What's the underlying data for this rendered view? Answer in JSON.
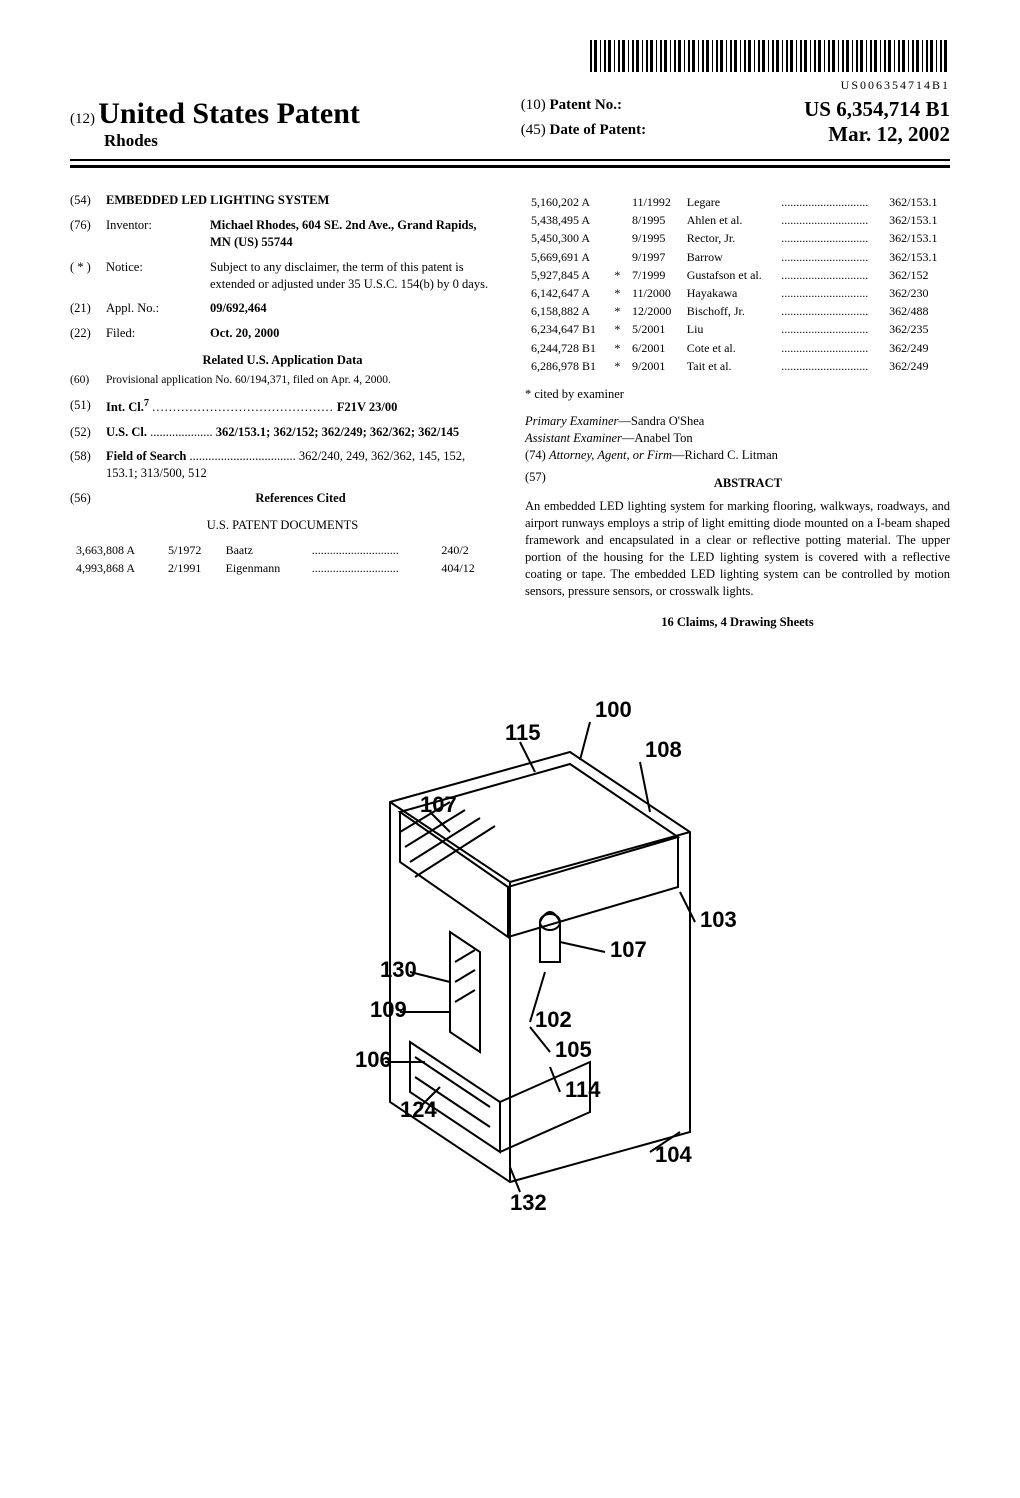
{
  "barcode_number": "US006354714B1",
  "header": {
    "doc_type_prefix": "(12)",
    "doc_type": "United States Patent",
    "inventor_surname": "Rhodes",
    "patent_no_prefix": "(10)",
    "patent_no_label": "Patent No.:",
    "patent_no": "US 6,354,714 B1",
    "date_prefix": "(45)",
    "date_label": "Date of Patent:",
    "date": "Mar. 12, 2002"
  },
  "left_col": {
    "title_num": "(54)",
    "title": "EMBEDDED LED LIGHTING SYSTEM",
    "inventor_num": "(76)",
    "inventor_label": "Inventor:",
    "inventor": "Michael Rhodes, 604 SE. 2nd Ave., Grand Rapids, MN (US) 55744",
    "notice_num": "( * )",
    "notice_label": "Notice:",
    "notice": "Subject to any disclaimer, the term of this patent is extended or adjusted under 35 U.S.C. 154(b) by 0 days.",
    "appl_num": "(21)",
    "appl_label": "Appl. No.:",
    "appl": "09/692,464",
    "filed_num": "(22)",
    "filed_label": "Filed:",
    "filed": "Oct. 20, 2000",
    "related_title": "Related U.S. Application Data",
    "prov_num": "(60)",
    "prov": "Provisional application No. 60/194,371, filed on Apr. 4, 2000.",
    "intcl_num": "(51)",
    "intcl_label": "Int. Cl.",
    "intcl_sup": "7",
    "intcl": "F21V 23/00",
    "uscl_num": "(52)",
    "uscl_label": "U.S. Cl.",
    "uscl": "362/153.1; 362/152; 362/249; 362/362; 362/145",
    "fos_num": "(58)",
    "fos_label": "Field of Search",
    "fos": "362/240, 249, 362/362, 145, 152, 153.1; 313/500, 512",
    "refs_num": "(56)",
    "refs_title": "References Cited",
    "docs_title": "U.S. PATENT DOCUMENTS",
    "refs_left": [
      {
        "no": "3,663,808 A",
        "date": "5/1972",
        "name": "Baatz",
        "cls": "240/2"
      },
      {
        "no": "4,993,868 A",
        "date": "2/1991",
        "name": "Eigenmann",
        "cls": "404/12"
      }
    ]
  },
  "right_col": {
    "refs_right": [
      {
        "no": "5,160,202 A",
        "star": "",
        "date": "11/1992",
        "name": "Legare",
        "cls": "362/153.1"
      },
      {
        "no": "5,438,495 A",
        "star": "",
        "date": "8/1995",
        "name": "Ahlen et al.",
        "cls": "362/153.1"
      },
      {
        "no": "5,450,300 A",
        "star": "",
        "date": "9/1995",
        "name": "Rector, Jr.",
        "cls": "362/153.1"
      },
      {
        "no": "5,669,691 A",
        "star": "",
        "date": "9/1997",
        "name": "Barrow",
        "cls": "362/153.1"
      },
      {
        "no": "5,927,845 A",
        "star": "*",
        "date": "7/1999",
        "name": "Gustafson et al.",
        "cls": "362/152"
      },
      {
        "no": "6,142,647 A",
        "star": "*",
        "date": "11/2000",
        "name": "Hayakawa",
        "cls": "362/230"
      },
      {
        "no": "6,158,882 A",
        "star": "*",
        "date": "12/2000",
        "name": "Bischoff, Jr.",
        "cls": "362/488"
      },
      {
        "no": "6,234,647 B1",
        "star": "*",
        "date": "5/2001",
        "name": "Liu",
        "cls": "362/235"
      },
      {
        "no": "6,244,728 B1",
        "star": "*",
        "date": "6/2001",
        "name": "Cote et al.",
        "cls": "362/249"
      },
      {
        "no": "6,286,978 B1",
        "star": "*",
        "date": "9/2001",
        "name": "Tait et al.",
        "cls": "362/249"
      }
    ],
    "cited_note": "* cited by examiner",
    "primary_label": "Primary Examiner",
    "primary": "—Sandra O'Shea",
    "assistant_label": "Assistant Examiner",
    "assistant": "—Anabel Ton",
    "attorney_num": "(74)",
    "attorney_label": "Attorney, Agent, or Firm",
    "attorney": "—Richard C. Litman",
    "abstract_num": "(57)",
    "abstract_title": "ABSTRACT",
    "abstract": "An embedded LED lighting system for marking flooring, walkways, roadways, and airport runways employs a strip of light emitting diode mounted on a I-beam shaped framework and encapsulated in a clear or reflective potting material. The upper portion of the housing for the LED lighting system is covered with a reflective coating or tape. The embedded LED lighting system can be controlled by motion sensors, pressure sensors, or crosswalk lights.",
    "claims": "16 Claims, 4 Drawing Sheets"
  },
  "figure": {
    "labels": {
      "n100": "100",
      "n115": "115",
      "n108": "108",
      "n107a": "107",
      "n107b": "107",
      "n103": "103",
      "n130": "130",
      "n109": "109",
      "n106": "106",
      "n102": "102",
      "n105": "105",
      "n124": "124",
      "n114": "114",
      "n104": "104",
      "n132": "132"
    },
    "style": {
      "stroke": "#000000",
      "stroke_width": 2,
      "font_family": "Arial, Helvetica, sans-serif",
      "label_fontsize": 22,
      "label_fontweight": "bold"
    }
  }
}
